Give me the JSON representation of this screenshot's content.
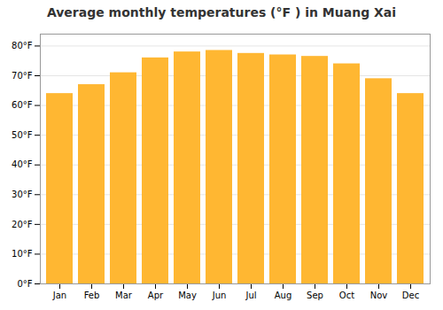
{
  "chart_data": {
    "type": "bar",
    "title": "Average monthly temperatures (°F ) in Muang Xai",
    "categories": [
      "Jan",
      "Feb",
      "Mar",
      "Apr",
      "May",
      "Jun",
      "Jul",
      "Aug",
      "Sep",
      "Oct",
      "Nov",
      "Dec"
    ],
    "values": [
      64,
      67,
      71,
      76,
      78,
      78.5,
      77.5,
      77,
      76.5,
      74,
      69,
      64
    ],
    "color": "#FFB732",
    "ylim": [
      0,
      84
    ],
    "yticks": [
      {
        "value": 0,
        "label": "0°F"
      },
      {
        "value": 10,
        "label": "10°F"
      },
      {
        "value": 20,
        "label": "20°F"
      },
      {
        "value": 30,
        "label": "30°F"
      },
      {
        "value": 40,
        "label": "40°F"
      },
      {
        "value": 50,
        "label": "50°F"
      },
      {
        "value": 60,
        "label": "60°F"
      },
      {
        "value": 70,
        "label": "70°F"
      },
      {
        "value": 80,
        "label": "80°F"
      }
    ],
    "grid": true
  }
}
